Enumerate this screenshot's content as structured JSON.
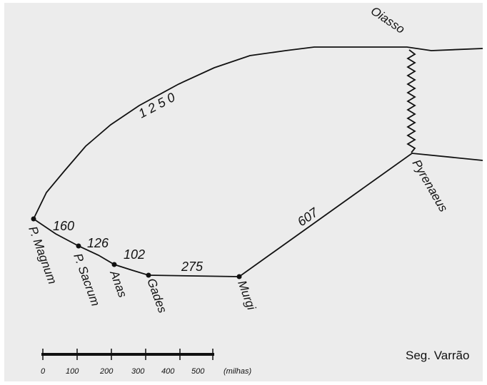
{
  "places": {
    "p_magnum": "P. Magnum",
    "p_sacrum": "P. Sacrum",
    "anas": "Anas",
    "gades": "Gades",
    "murgi": "Murgi",
    "pyrenaeus": "Pyrenaeus",
    "oiasso": "Oiasso"
  },
  "distances": {
    "northern_route": "1 2 5 0",
    "magnum_sacrum": "160",
    "sacrum_anas": "126",
    "anas_gades": "102",
    "gades_murgi": "275",
    "murgi_pyrenaeus": "607"
  },
  "scale_bar": {
    "ticks": [
      "0",
      "100",
      "200",
      "300",
      "400",
      "500"
    ],
    "unit": "(milhas)"
  },
  "credit": "Seg. Varrão",
  "colors": {
    "background": "#ececec",
    "ink": "#111111"
  }
}
